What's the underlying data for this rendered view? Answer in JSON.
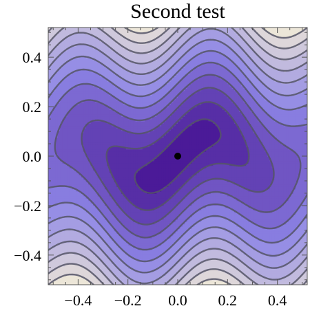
{
  "chart_data": {
    "type": "heatmap",
    "subtype": "contour",
    "title": "Second test",
    "xlabel": "",
    "ylabel": "",
    "xlim": [
      -0.52,
      0.52
    ],
    "ylim": [
      -0.52,
      0.52
    ],
    "x_ticks": [
      -0.4,
      -0.2,
      0.0,
      0.2,
      0.4
    ],
    "y_ticks": [
      -0.4,
      -0.2,
      0.0,
      0.2,
      0.4
    ],
    "x_tick_labels": [
      "−0.4",
      "−0.2",
      "0.0",
      "0.2",
      "0.4"
    ],
    "y_tick_labels": [
      "−0.4",
      "−0.2",
      "0.0",
      "0.2",
      "0.4"
    ],
    "contour_levels": 12,
    "color_low": "#4b1a98",
    "color_mid": "#8d85e6",
    "color_high": "#ece6d8",
    "contour_line_color": "#555566",
    "marker": {
      "x": 0.0,
      "y": 0.0,
      "color": "#000000"
    },
    "grid": false,
    "legend": "none"
  }
}
